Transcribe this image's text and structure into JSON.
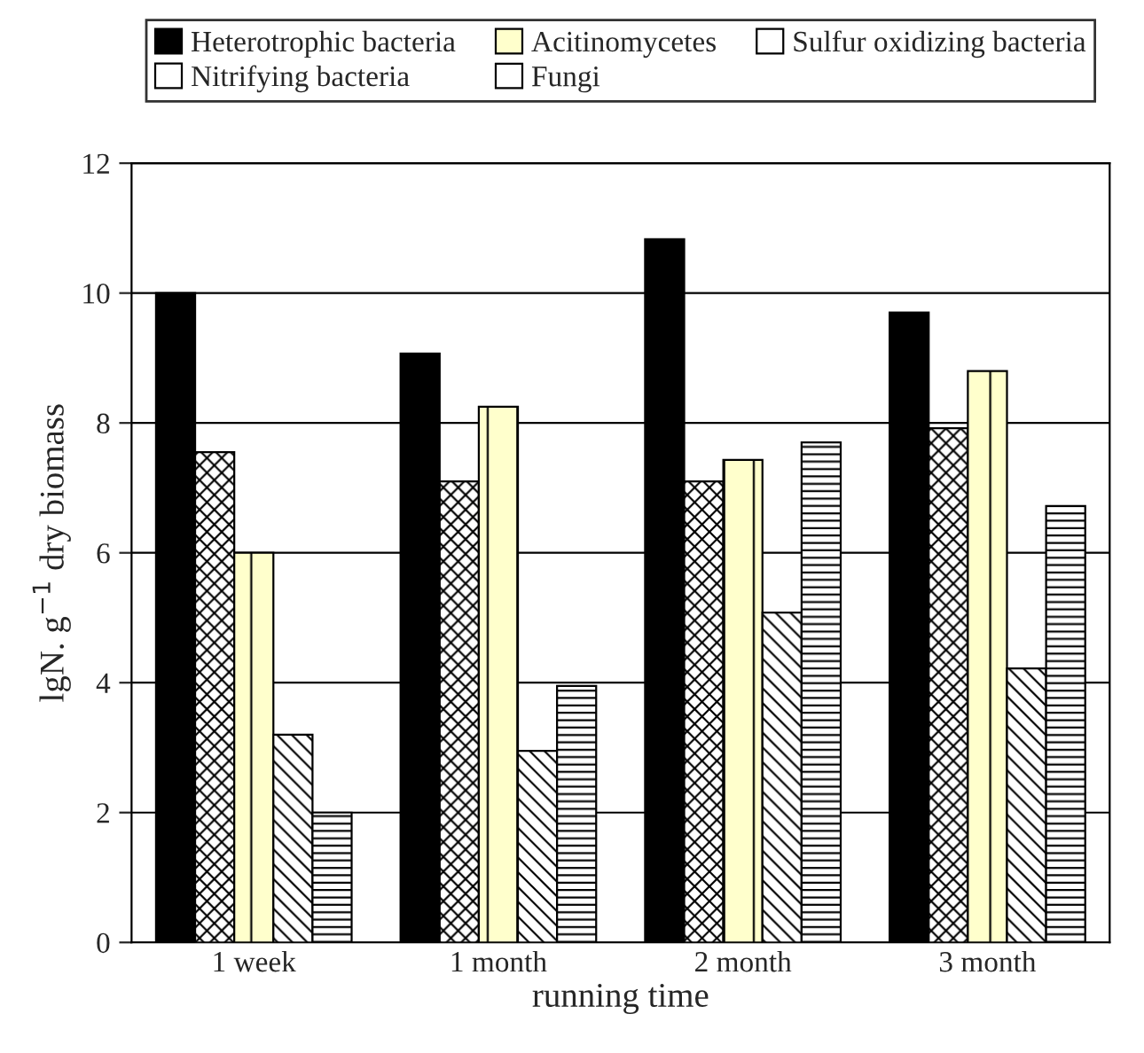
{
  "chart_data": {
    "type": "bar",
    "xlabel": "running time",
    "ylabel": "lgN. g$^{−1}$ dry biomass",
    "categories": [
      "1 week",
      "1 month",
      "2 month",
      "3 month"
    ],
    "series": [
      {
        "name": "Heterotrophic bacteria",
        "color": "#000000",
        "values": [
          10.0,
          9.07,
          10.83,
          9.7
        ]
      },
      {
        "name": "Nitrifying bacteria",
        "color": "#ffffff",
        "values": [
          7.55,
          7.1,
          7.1,
          7.92
        ]
      },
      {
        "name": "Acitinomycetes",
        "color": "#ffffcc",
        "values": [
          6.0,
          8.25,
          7.43,
          8.8
        ]
      },
      {
        "name": "Fungi",
        "color": "#ffffff",
        "values": [
          3.2,
          2.95,
          5.08,
          4.22
        ]
      },
      {
        "name": "Sulfur oxidizing bacteria",
        "color": "#ffffff",
        "values": [
          2.0,
          3.95,
          7.7,
          6.72
        ]
      }
    ],
    "ylim": [
      0,
      12
    ],
    "yticks": [
      0,
      2,
      4,
      6,
      8,
      10,
      12
    ],
    "grid": "y",
    "legend": "top"
  }
}
